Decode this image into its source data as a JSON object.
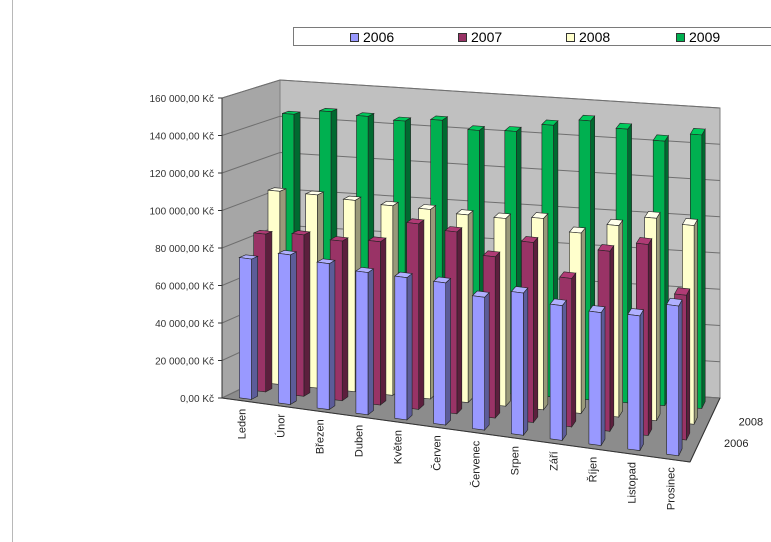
{
  "chart_data": {
    "type": "bar",
    "style": "3d-clustered-depth",
    "categories": [
      "Leden",
      "Únor",
      "Březen",
      "Duben",
      "Květen",
      "Červen",
      "Červenec",
      "Srpen",
      "Září",
      "Říjen",
      "Listopad",
      "Prosinec"
    ],
    "series": [
      {
        "name": "2006",
        "color": "#9999ff",
        "values": [
          75000,
          80000,
          78000,
          76000,
          76000,
          76000,
          71000,
          76000,
          72000,
          71000,
          72000,
          80000
        ]
      },
      {
        "name": "2007",
        "color": "#993366",
        "values": [
          85000,
          87000,
          86000,
          88000,
          100000,
          98000,
          87000,
          97000,
          80000,
          97000,
          103000,
          78000
        ]
      },
      {
        "name": "2008",
        "color": "#ffffcc",
        "values": [
          105000,
          105000,
          104000,
          103000,
          103000,
          102000,
          102000,
          104000,
          98000,
          104000,
          110000,
          108000
        ]
      },
      {
        "name": "2009",
        "color": "#00b050",
        "values": [
          144000,
          147000,
          146000,
          145000,
          147000,
          143000,
          144000,
          149000,
          153000,
          150000,
          145000,
          150000
        ]
      }
    ],
    "yticks": [
      "0,00 Kč",
      "20 000,00 Kč",
      "40 000,00 Kč",
      "60 000,00 Kč",
      "80 000,00 Kč",
      "100 000,00 Kč",
      "120 000,00 Kč",
      "140 000,00 Kč",
      "160 000,00 Kč"
    ],
    "depth_labels": [
      "2006",
      "2008"
    ],
    "ylim": [
      0,
      160000
    ],
    "legend_position": "top",
    "grid": true
  }
}
